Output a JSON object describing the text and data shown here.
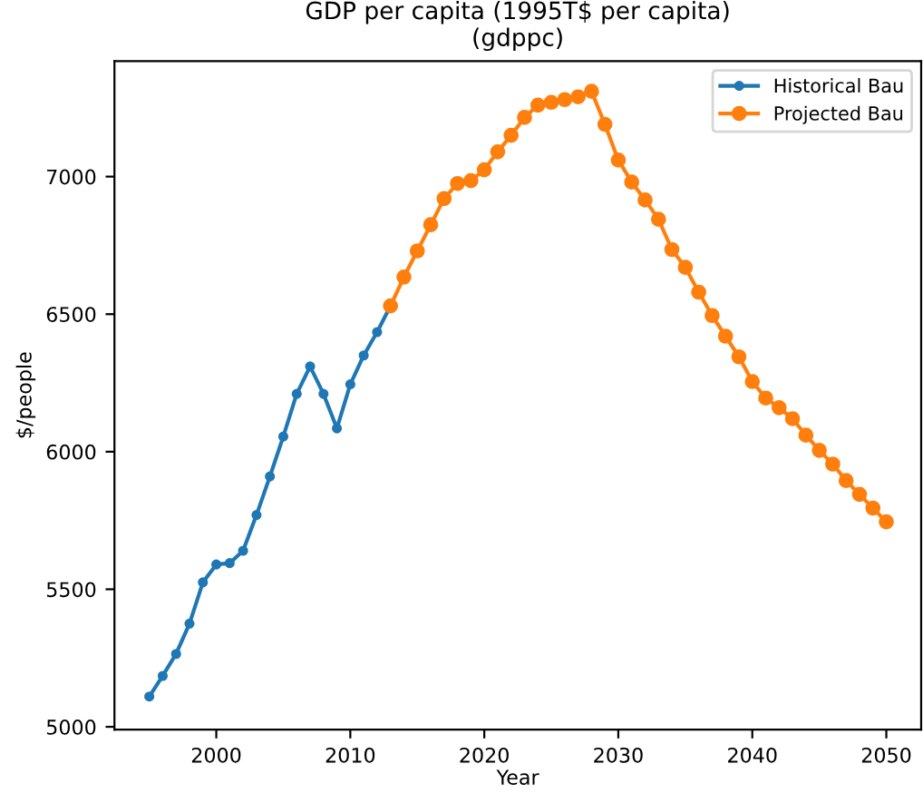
{
  "chart_data": {
    "type": "line",
    "title": "GDP per capita (1995T$ per capita)\n(gdppc)",
    "xlabel": "Year",
    "ylabel": "$/people",
    "xlim": [
      1992.4,
      2052.6
    ],
    "xticks": [
      2000,
      2010,
      2020,
      2030,
      2040,
      2050
    ],
    "ylim": [
      4990,
      7420
    ],
    "yticks": [
      5000,
      5500,
      6000,
      6500,
      7000
    ],
    "grid": false,
    "legend": "top right",
    "marker": "circle",
    "series": [
      {
        "name": "Historical Bau",
        "color": "#1f77b4",
        "x": [
          1995,
          1996,
          1997,
          1998,
          1999,
          2000,
          2001,
          2002,
          2003,
          2004,
          2005,
          2006,
          2007,
          2008,
          2009,
          2010,
          2011,
          2012,
          2013
        ],
        "values": [
          5110,
          5185,
          5265,
          5375,
          5525,
          5590,
          5595,
          5640,
          5770,
          5910,
          6055,
          6210,
          6310,
          6210,
          6085,
          6245,
          6350,
          6435,
          6530
        ]
      },
      {
        "name": "Projected Bau",
        "color": "#ff7f0e",
        "x": [
          2013,
          2014,
          2015,
          2016,
          2017,
          2018,
          2019,
          2020,
          2021,
          2022,
          2023,
          2024,
          2025,
          2026,
          2027,
          2028,
          2029,
          2030,
          2031,
          2032,
          2033,
          2034,
          2035,
          2036,
          2037,
          2038,
          2039,
          2040,
          2041,
          2042,
          2043,
          2044,
          2045,
          2046,
          2047,
          2048,
          2049,
          2050
        ],
        "values": [
          6530,
          6635,
          6730,
          6825,
          6920,
          6975,
          6985,
          7025,
          7090,
          7150,
          7215,
          7260,
          7270,
          7280,
          7290,
          7310,
          7190,
          7060,
          6980,
          6915,
          6845,
          6735,
          6670,
          6580,
          6495,
          6420,
          6345,
          6255,
          6195,
          6160,
          6120,
          6060,
          6005,
          5955,
          5895,
          5845,
          5795,
          5745
        ]
      }
    ]
  }
}
